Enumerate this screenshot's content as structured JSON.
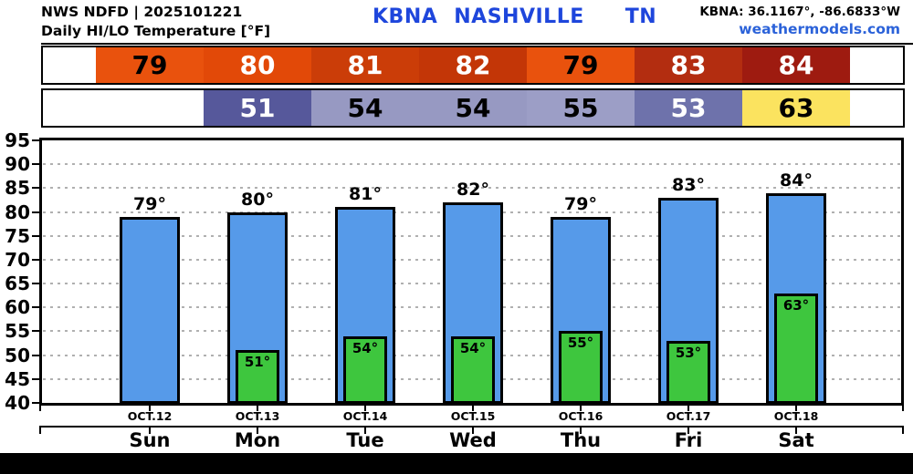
{
  "header": {
    "line1": "NWS NDFD | 2025101221",
    "line2": "Daily HI/LO Temperature [°F]",
    "station_code": "KBNA",
    "station_name": "NASHVILLE",
    "station_state": "TN",
    "coords": "KBNA: 36.1167°, -86.6833°W",
    "website": "weathermodels.com",
    "title_color": "#1e46dc",
    "website_color": "#2b62d9"
  },
  "temp_strip": {
    "high_cells": [
      {
        "value": "79",
        "bg": "#e9520d",
        "fg": "#000000"
      },
      {
        "value": "80",
        "bg": "#e24908",
        "fg": "#ffffff"
      },
      {
        "value": "81",
        "bg": "#cb3d08",
        "fg": "#ffffff"
      },
      {
        "value": "82",
        "bg": "#c33607",
        "fg": "#ffffff"
      },
      {
        "value": "79",
        "bg": "#e9520d",
        "fg": "#000000"
      },
      {
        "value": "83",
        "bg": "#b32d10",
        "fg": "#ffffff"
      },
      {
        "value": "84",
        "bg": "#9e1b10",
        "fg": "#ffffff"
      }
    ],
    "low_cells": [
      null,
      {
        "value": "51",
        "bg": "#56589b",
        "fg": "#ffffff"
      },
      {
        "value": "54",
        "bg": "#9799c2",
        "fg": "#000000"
      },
      {
        "value": "54",
        "bg": "#9799c2",
        "fg": "#000000"
      },
      {
        "value": "55",
        "bg": "#9c9ec6",
        "fg": "#000000"
      },
      {
        "value": "53",
        "bg": "#6e72ab",
        "fg": "#ffffff"
      },
      {
        "value": "63",
        "bg": "#fbe35f",
        "fg": "#000000"
      }
    ]
  },
  "chart_data": {
    "type": "bar",
    "title": "Daily HI/LO Temperature [°F]",
    "station": "KBNA NASHVILLE TN",
    "categories": [
      "Sun",
      "Mon",
      "Tue",
      "Wed",
      "Thu",
      "Fri",
      "Sat"
    ],
    "date_labels": [
      "OCT.12",
      "OCT.13",
      "OCT.14",
      "OCT.15",
      "OCT.16",
      "OCT.17",
      "OCT.18"
    ],
    "series": [
      {
        "name": "High",
        "values": [
          79,
          80,
          81,
          82,
          79,
          83,
          84
        ],
        "bar_color": "#569ae9",
        "label_suffix": "°"
      },
      {
        "name": "Low",
        "values": [
          null,
          51,
          54,
          54,
          55,
          53,
          63
        ],
        "bar_color": "#3ec63e",
        "label_suffix": "°"
      }
    ],
    "ylim": [
      40,
      95
    ],
    "ytick_step": 5,
    "grid": "dotted-horizontal",
    "legend": "none"
  }
}
